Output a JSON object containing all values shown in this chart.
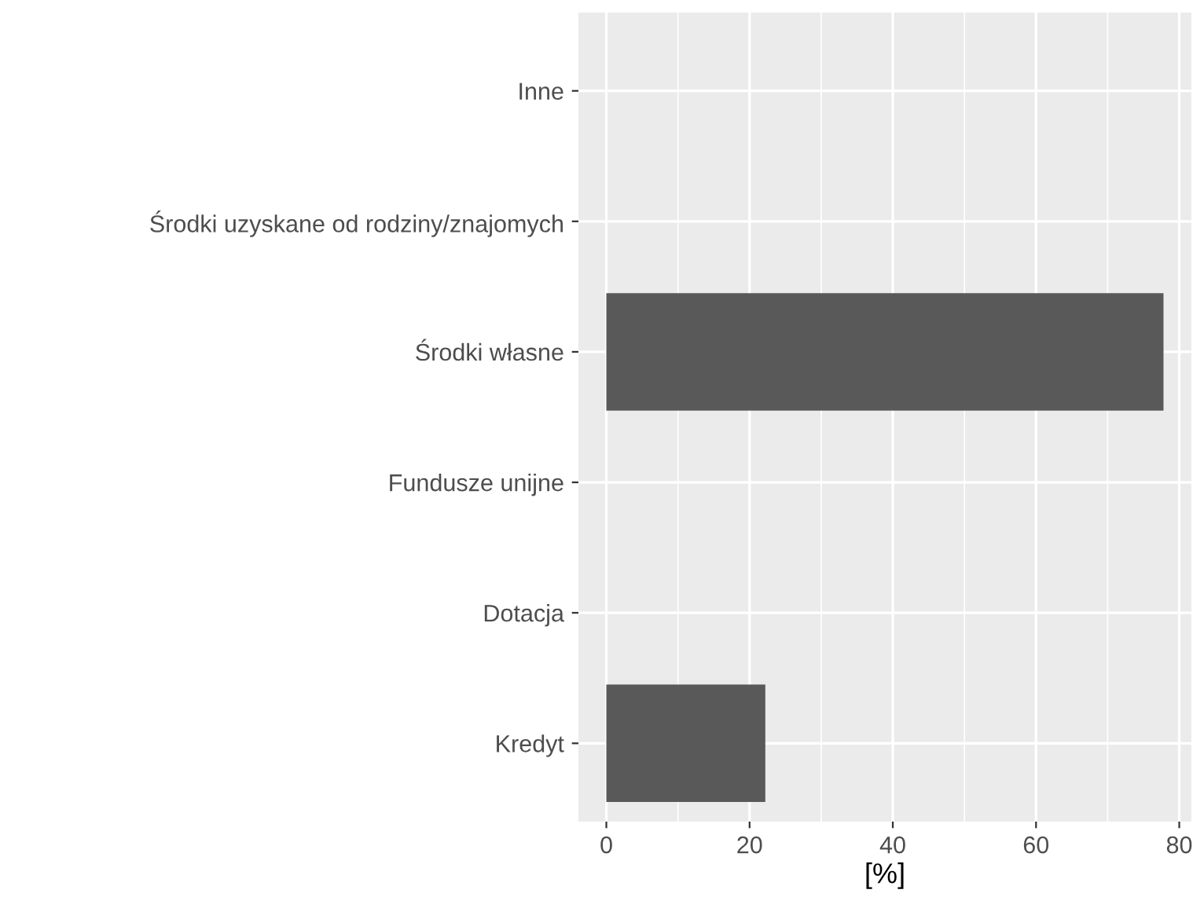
{
  "chart_data": {
    "type": "bar",
    "orientation": "horizontal",
    "xlabel": "[%]",
    "categories": [
      "Inne",
      "Środki uzyskane od rodziny/znajomych",
      "Środki własne",
      "Fundusze unijne",
      "Dotacja",
      "Kredyt"
    ],
    "values": [
      0,
      0,
      77.8,
      0,
      0,
      22.2
    ],
    "color": "#595959",
    "xlim": [
      -3.9,
      81.7
    ],
    "xticks": [
      0,
      20,
      40,
      60,
      80
    ],
    "grid": true
  }
}
